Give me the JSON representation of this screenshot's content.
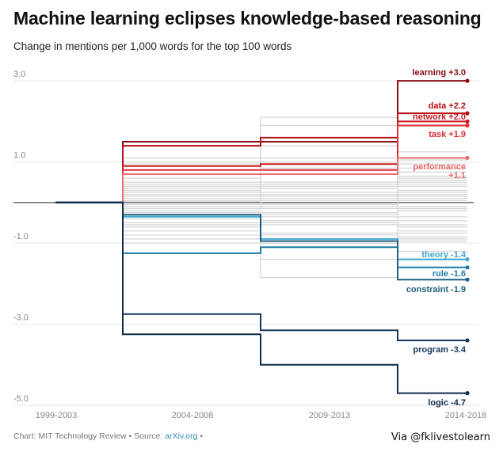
{
  "header": {
    "title": "Machine learning eclipses knowledge-based reasoning",
    "subtitle": "Change in mentions per 1,000 words for the top 100 words"
  },
  "footer": {
    "credit": "Chart: MIT Technology Review • Source: ",
    "source_link": "arXiv.org",
    "trailing": " •",
    "watermark": "Via @fklivestolearn"
  },
  "chart_data": {
    "type": "line",
    "step": true,
    "categories": [
      "1999-2003",
      "2004-2008",
      "2009-2013",
      "2014-2018"
    ],
    "yticks": [
      3.0,
      1.0,
      -1.0,
      -3.0,
      -5.0
    ],
    "ytick_labels": [
      "3.0",
      "1.0",
      "-1.0",
      "-3.0",
      "-5.0"
    ],
    "ylim": [
      -5.0,
      3.1
    ],
    "grid": true,
    "series": [
      {
        "name": "learning",
        "label": "learning +3.0",
        "color": "#8b0c14",
        "values": [
          0,
          1.5,
          1.5,
          3.0
        ]
      },
      {
        "name": "data",
        "label": "data +2.2",
        "color": "#b80c14",
        "values": [
          0,
          1.4,
          1.6,
          2.2
        ]
      },
      {
        "name": "network",
        "label": "network +2.0",
        "color": "#c91a22",
        "values": [
          0,
          0.9,
          0.95,
          2.0
        ]
      },
      {
        "name": "task",
        "label": "task +1.9",
        "color": "#dd2c34",
        "values": [
          0,
          0.8,
          0.8,
          1.9
        ]
      },
      {
        "name": "performance",
        "label": "performance +1.1",
        "color": "#f06a6a",
        "values": [
          0,
          0.7,
          0.7,
          1.1
        ]
      },
      {
        "name": "theory",
        "label": "theory -1.4",
        "color": "#3fa8cf",
        "values": [
          0,
          -0.35,
          -0.9,
          -1.4
        ]
      },
      {
        "name": "rule",
        "label": "rule -1.6",
        "color": "#1e7aa6",
        "values": [
          0,
          -1.25,
          -1.1,
          -1.6
        ]
      },
      {
        "name": "constraint",
        "label": "constraint -1.9",
        "color": "#1d6080",
        "values": [
          0,
          -0.3,
          -0.95,
          -1.9
        ]
      },
      {
        "name": "program",
        "label": "program -3.4",
        "color": "#14365d",
        "values": [
          0,
          -2.75,
          -3.15,
          -3.4
        ]
      },
      {
        "name": "logic",
        "label": "logic -4.7",
        "color": "#0f2a4a",
        "values": [
          0,
          -3.25,
          -4.0,
          -4.7
        ]
      }
    ],
    "background_series": [
      [
        0,
        0.5,
        0.7,
        0.45
      ],
      [
        0,
        0.45,
        0.4,
        0.6
      ],
      [
        0,
        0.35,
        0.45,
        0.75
      ],
      [
        0,
        0.3,
        0.35,
        0.25
      ],
      [
        0,
        0.25,
        0.5,
        0.55
      ],
      [
        0,
        0.2,
        0.15,
        0.4
      ],
      [
        0,
        0.15,
        0.25,
        0.1
      ],
      [
        0,
        0.1,
        0.2,
        0.3
      ],
      [
        0,
        0.05,
        -0.05,
        0.15
      ],
      [
        0,
        0.02,
        0.1,
        -0.1
      ],
      [
        0,
        -0.05,
        0.05,
        0.05
      ],
      [
        0,
        -0.1,
        -0.15,
        -0.2
      ],
      [
        0,
        -0.15,
        -0.1,
        0.2
      ],
      [
        0,
        -0.2,
        -0.25,
        -0.35
      ],
      [
        0,
        -0.25,
        -0.3,
        -0.15
      ],
      [
        0,
        -0.3,
        -0.35,
        -0.45
      ],
      [
        0,
        -0.4,
        -0.45,
        -0.55
      ],
      [
        0,
        -0.5,
        -0.55,
        -0.6
      ],
      [
        0,
        -0.6,
        -0.5,
        -0.75
      ],
      [
        0,
        -0.7,
        -0.8,
        -0.85
      ],
      [
        0,
        -0.8,
        -0.75,
        -0.9
      ],
      [
        0,
        -0.9,
        -1.0,
        -0.7
      ],
      [
        0,
        1.0,
        0.85,
        0.65
      ],
      [
        0,
        0.6,
        1.0,
        0.85
      ],
      [
        0,
        0.9,
        1.1,
        0.95
      ],
      [
        0,
        -1.0,
        -1.4,
        -1.2
      ],
      [
        0,
        -0.55,
        -1.85,
        -0.95
      ],
      [
        0,
        1.1,
        2.1,
        1.05
      ],
      [
        0,
        0.95,
        1.9,
        1.25
      ],
      [
        0,
        0.4,
        1.4,
        0.5
      ]
    ]
  }
}
